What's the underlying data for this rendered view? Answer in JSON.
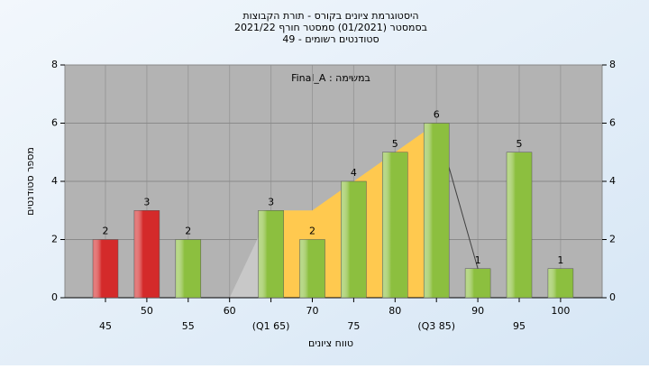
{
  "chart_data": {
    "type": "bar",
    "title": [
      "היסטוגרמת ציונים בקורס - תורת הקבוצות",
      "בסמסטר  (01/2021)  סמסטר חורף 2021/22",
      "סטודנטים רשומים - 49"
    ],
    "annotation": "Final_A : במשימה",
    "x_label": "טווח ציונים",
    "y_label": "מספר סטודנטים",
    "categories": [
      "45",
      "50",
      "55",
      "60",
      "(Q1 65)",
      "70",
      "75",
      "80",
      "(Q3 85)",
      "90",
      "95",
      "100"
    ],
    "values": [
      2,
      3,
      2,
      null,
      3,
      2,
      4,
      5,
      6,
      1,
      5,
      1
    ],
    "colors": [
      "#d42a2a",
      "#d42a2a",
      "#8cbf3f",
      "#8cbf3f",
      "#8cbf3f",
      "#8cbf3f",
      "#8cbf3f",
      "#8cbf3f",
      "#8cbf3f",
      "#8cbf3f",
      "#8cbf3f",
      "#8cbf3f"
    ],
    "overlay": {
      "values": [
        null,
        null,
        null,
        0,
        3,
        3,
        4,
        5,
        6,
        1,
        null,
        null
      ],
      "colors": [
        "#c8c8c8",
        "#ffc94f",
        "#404040"
      ]
    },
    "ylim": [
      0,
      8
    ],
    "yticks": [
      0,
      2,
      4,
      6,
      8
    ],
    "y2lim": [
      0,
      8
    ],
    "y2ticks": [
      0,
      2,
      4,
      6,
      8
    ],
    "grid": true
  }
}
